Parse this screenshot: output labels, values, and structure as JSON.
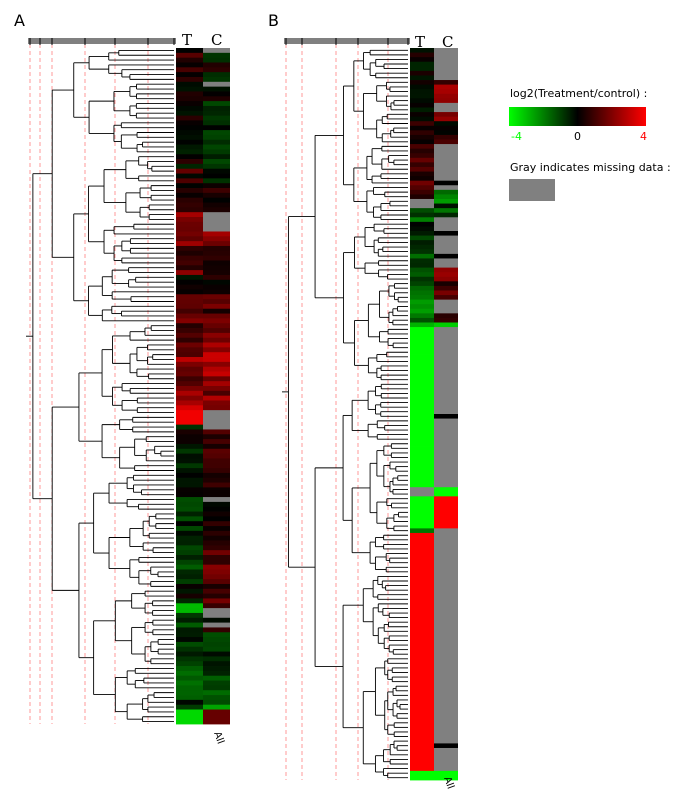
{
  "panels": [
    {
      "letter": "A",
      "col_labels": [
        "T",
        "C"
      ],
      "footer_label": "All",
      "rows": 140,
      "bands_T": [
        [
          0,
          0.15,
          0.3
        ],
        [
          0.03,
          0.1,
          0.25
        ],
        [
          0.08,
          0.05,
          0.15
        ],
        [
          0.12,
          -0.05,
          0.1
        ],
        [
          0.16,
          0.2,
          0.35
        ],
        [
          0.2,
          0.1,
          0.2
        ],
        [
          0.24,
          0.55,
          0.2
        ],
        [
          0.29,
          0.35,
          0.3
        ],
        [
          0.33,
          0.05,
          0.15
        ],
        [
          0.36,
          0.25,
          0.25
        ],
        [
          0.39,
          0.35,
          0.25
        ],
        [
          0.43,
          0.5,
          0.25
        ],
        [
          0.47,
          0.3,
          0.25
        ],
        [
          0.5,
          0.6,
          0.25
        ],
        [
          0.53,
          0.95,
          0.0
        ],
        [
          0.555,
          -0.05,
          0.15
        ],
        [
          0.58,
          -0.1,
          0.15
        ],
        [
          0.62,
          0.0,
          0.1
        ],
        [
          0.66,
          -0.2,
          0.15
        ],
        [
          0.7,
          -0.15,
          0.15
        ],
        [
          0.74,
          -0.25,
          0.15
        ],
        [
          0.78,
          -0.1,
          0.2
        ],
        [
          0.82,
          -0.6,
          0.2
        ],
        [
          0.835,
          -0.2,
          0.2
        ],
        [
          0.86,
          -0.2,
          0.2
        ],
        [
          0.9,
          -0.3,
          0.2
        ],
        [
          0.94,
          -0.2,
          0.2
        ],
        [
          0.965,
          -0.35,
          0.15
        ],
        [
          0.975,
          -0.85,
          0.0
        ]
      ],
      "bands_C": [
        [
          0,
          0.05,
          0.3
        ],
        [
          0.03,
          -0.05,
          0.25
        ],
        [
          0.08,
          -0.1,
          0.15
        ],
        [
          0.12,
          -0.2,
          0.1
        ],
        [
          0.16,
          -0.1,
          0.2
        ],
        [
          0.2,
          0.1,
          0.2
        ],
        [
          0.24,
          0.6,
          0.2
        ],
        [
          0.29,
          0.3,
          0.3
        ],
        [
          0.33,
          0.1,
          0.15
        ],
        [
          0.36,
          0.3,
          0.25
        ],
        [
          0.39,
          0.45,
          0.25
        ],
        [
          0.43,
          0.7,
          0.25
        ],
        [
          0.47,
          0.55,
          0.25
        ],
        [
          0.5,
          0.45,
          0.25
        ],
        [
          0.53,
          0.45,
          0.2
        ],
        [
          0.555,
          0.2,
          0.2
        ],
        [
          0.58,
          0.25,
          0.2
        ],
        [
          0.62,
          0.15,
          0.2
        ],
        [
          0.66,
          0.1,
          0.2
        ],
        [
          0.7,
          0.2,
          0.2
        ],
        [
          0.74,
          0.35,
          0.2
        ],
        [
          0.78,
          0.3,
          0.25
        ],
        [
          0.82,
          0.0,
          0.3
        ],
        [
          0.835,
          0.0,
          0.3
        ],
        [
          0.86,
          -0.15,
          0.2
        ],
        [
          0.9,
          -0.25,
          0.2
        ],
        [
          0.94,
          -0.35,
          0.2
        ],
        [
          0.965,
          -0.5,
          0.15
        ],
        [
          0.975,
          0.4,
          0.0
        ]
      ],
      "gray_T": [
        [
          0.53,
          0.532
        ],
        [
          0.815,
          0.818
        ],
        [
          0.83,
          0.832
        ],
        [
          0.93,
          0.933
        ]
      ],
      "gray_C": [
        [
          0.0,
          0.006
        ],
        [
          0.05,
          0.052
        ],
        [
          0.075,
          0.077
        ],
        [
          0.24,
          0.27
        ],
        [
          0.53,
          0.56
        ],
        [
          0.66,
          0.665
        ],
        [
          0.826,
          0.84
        ],
        [
          0.85,
          0.853
        ],
        [
          0.88,
          0.884
        ],
        [
          0.94,
          0.942
        ]
      ]
    },
    {
      "letter": "B",
      "col_labels": [
        "T",
        "C"
      ],
      "footer_label": "All",
      "rows": 160,
      "bands_T": [
        [
          0,
          0.0,
          0.15
        ],
        [
          0.05,
          -0.05,
          0.1
        ],
        [
          0.1,
          0.15,
          0.15
        ],
        [
          0.15,
          0.25,
          0.2
        ],
        [
          0.19,
          0.3,
          0.2
        ],
        [
          0.21,
          -0.3,
          0.3
        ],
        [
          0.24,
          -0.15,
          0.15
        ],
        [
          0.28,
          -0.3,
          0.15
        ],
        [
          0.32,
          -0.5,
          0.15
        ],
        [
          0.36,
          -0.35,
          0.15
        ],
        [
          0.375,
          -0.7,
          0.1
        ],
        [
          0.38,
          -1.0,
          0.0
        ],
        [
          0.6,
          0.0,
          0.05
        ],
        [
          0.61,
          -1.0,
          0.0
        ],
        [
          0.655,
          -0.3,
          0.2
        ],
        [
          0.66,
          1.0,
          0.0
        ],
        [
          0.986,
          -1.0,
          0.0
        ],
        [
          0.996,
          1.0,
          0.0
        ]
      ],
      "bands_C": [
        [
          0,
          0.2,
          0.3
        ],
        [
          0.05,
          0.55,
          0.2
        ],
        [
          0.1,
          0.1,
          0.2
        ],
        [
          0.15,
          0.3,
          0.2
        ],
        [
          0.19,
          -0.6,
          0.2
        ],
        [
          0.21,
          -0.3,
          0.3
        ],
        [
          0.24,
          -0.2,
          0.2
        ],
        [
          0.28,
          0.3,
          0.3
        ],
        [
          0.32,
          0.35,
          0.2
        ],
        [
          0.36,
          0.1,
          0.15
        ],
        [
          0.375,
          -0.8,
          0.0
        ],
        [
          0.38,
          0.0,
          0.0
        ],
        [
          0.6,
          -1.0,
          0.0
        ],
        [
          0.61,
          1.0,
          0.0
        ],
        [
          0.655,
          0.0,
          0.0
        ],
        [
          0.66,
          0.0,
          0.0
        ],
        [
          0.986,
          -1.0,
          0.0
        ],
        [
          0.996,
          1.0,
          0.0
        ]
      ],
      "gray_T": [
        [
          0.204,
          0.214
        ],
        [
          0.6,
          0.61
        ]
      ],
      "gray_C": [
        [
          0.0,
          0.04
        ],
        [
          0.075,
          0.085
        ],
        [
          0.13,
          0.19
        ],
        [
          0.23,
          0.3
        ],
        [
          0.34,
          0.36
        ],
        [
          0.38,
          0.6
        ],
        [
          0.655,
          0.986
        ]
      ],
      "black_C": [
        [
          0.016,
          0.018
        ],
        [
          0.104,
          0.106
        ],
        [
          0.14,
          0.142
        ],
        [
          0.152,
          0.154
        ],
        [
          0.16,
          0.162
        ],
        [
          0.18,
          0.182
        ],
        [
          0.25,
          0.252
        ],
        [
          0.28,
          0.282
        ],
        [
          0.39,
          0.392
        ],
        [
          0.445,
          0.447
        ],
        [
          0.5,
          0.502
        ],
        [
          0.56,
          0.562
        ],
        [
          0.72,
          0.722
        ],
        [
          0.95,
          0.955
        ]
      ]
    }
  ],
  "legend": {
    "title": "log2(Treatment/control) :",
    "tick_min": "-4",
    "tick_mid": "0",
    "tick_max": "4",
    "min_color": "#00ff00",
    "mid_color": "#000000",
    "max_color": "#ff0000",
    "missing_label": "Gray indicates missing data :",
    "missing_color": "#808080"
  }
}
